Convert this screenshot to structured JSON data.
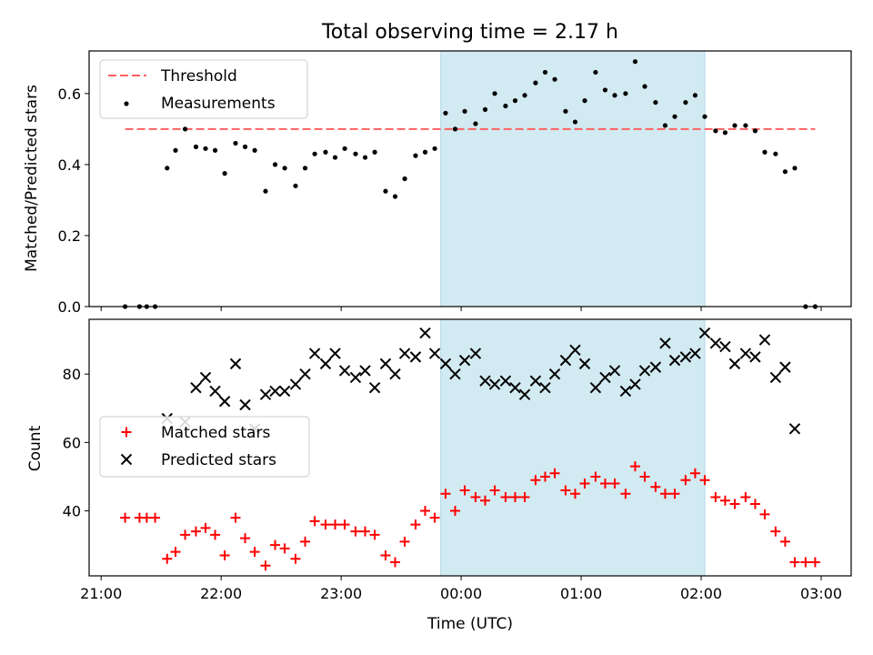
{
  "chart_data": [
    {
      "type": "scatter",
      "title": "Total observing time = 2.17 h",
      "xlabel": "",
      "ylabel": "Matched/Predicted stars",
      "ylim": [
        0,
        0.72
      ],
      "yticks": [
        "0.0",
        "0.2",
        "0.4",
        "0.6"
      ],
      "x_unit": "time UTC (hours from 21:00)",
      "highlight_span": {
        "x0": 2.83,
        "x1": 5.03,
        "color": "#add8e6"
      },
      "threshold": {
        "name": "Threshold",
        "value": 0.5,
        "x0": 0.2,
        "x1": 5.95,
        "color": "#ff6060"
      },
      "legend": {
        "position": "upper left",
        "entries": [
          "Threshold",
          "Measurements"
        ]
      },
      "series": [
        {
          "name": "Measurements",
          "color": "#000000",
          "x": [
            0.2,
            0.32,
            0.38,
            0.45,
            0.55,
            0.62,
            0.7,
            0.79,
            0.87,
            0.95,
            1.03,
            1.12,
            1.2,
            1.28,
            1.37,
            1.45,
            1.53,
            1.62,
            1.7,
            1.78,
            1.87,
            1.95,
            2.03,
            2.12,
            2.2,
            2.28,
            2.37,
            2.45,
            2.53,
            2.62,
            2.7,
            2.78,
            2.87,
            2.95,
            3.03,
            3.12,
            3.2,
            3.28,
            3.37,
            3.45,
            3.53,
            3.62,
            3.7,
            3.78,
            3.87,
            3.95,
            4.03,
            4.12,
            4.2,
            4.28,
            4.37,
            4.45,
            4.53,
            4.62,
            4.7,
            4.78,
            4.87,
            4.95,
            5.03,
            5.12,
            5.2,
            5.28,
            5.37,
            5.45,
            5.53,
            5.62,
            5.7,
            5.78,
            5.87,
            5.95
          ],
          "y": [
            0,
            0,
            0,
            0,
            0.39,
            0.44,
            0.5,
            0.45,
            0.445,
            0.44,
            0.375,
            0.46,
            0.45,
            0.44,
            0.325,
            0.4,
            0.39,
            0.34,
            0.39,
            0.43,
            0.435,
            0.42,
            0.445,
            0.43,
            0.42,
            0.435,
            0.325,
            0.31,
            0.36,
            0.425,
            0.435,
            0.445,
            0.545,
            0.5,
            0.55,
            0.515,
            0.555,
            0.6,
            0.565,
            0.58,
            0.595,
            0.63,
            0.66,
            0.64,
            0.55,
            0.52,
            0.58,
            0.66,
            0.61,
            0.595,
            0.6,
            0.69,
            0.62,
            0.575,
            0.51,
            0.535,
            0.575,
            0.595,
            0.535,
            0.495,
            0.49,
            0.51,
            0.51,
            0.495,
            0.435,
            0.43,
            0.38,
            0.39,
            0,
            0
          ]
        }
      ]
    },
    {
      "type": "scatter",
      "title": "",
      "xlabel": "Time (UTC)",
      "ylabel": "Count",
      "ylim": [
        21,
        96
      ],
      "yticks": [
        "40",
        "60",
        "80"
      ],
      "xlim": [
        -0.1,
        6.25
      ],
      "xticks": [
        "21:00",
        "22:00",
        "23:00",
        "00:00",
        "01:00",
        "02:00",
        "03:00"
      ],
      "highlight_span": {
        "x0": 2.83,
        "x1": 5.03,
        "color": "#add8e6"
      },
      "legend": {
        "position": "center left",
        "entries": [
          "Matched stars",
          "Predicted stars"
        ]
      },
      "series": [
        {
          "name": "Matched stars",
          "marker": "+",
          "color": "#ff0000",
          "x": [
            0.2,
            0.32,
            0.38,
            0.45,
            0.55,
            0.62,
            0.7,
            0.79,
            0.87,
            0.95,
            1.03,
            1.12,
            1.2,
            1.28,
            1.37,
            1.45,
            1.53,
            1.62,
            1.7,
            1.78,
            1.87,
            1.95,
            2.03,
            2.12,
            2.2,
            2.28,
            2.37,
            2.45,
            2.53,
            2.62,
            2.7,
            2.78,
            2.87,
            2.95,
            3.03,
            3.12,
            3.2,
            3.28,
            3.37,
            3.45,
            3.53,
            3.62,
            3.7,
            3.78,
            3.87,
            3.95,
            4.03,
            4.12,
            4.2,
            4.28,
            4.37,
            4.45,
            4.53,
            4.62,
            4.7,
            4.78,
            4.87,
            4.95,
            5.03,
            5.12,
            5.2,
            5.28,
            5.37,
            5.45,
            5.53,
            5.62,
            5.7,
            5.78,
            5.87,
            5.95
          ],
          "y": [
            38,
            38,
            38,
            38,
            26,
            28,
            33,
            34,
            35,
            33,
            27,
            38,
            32,
            28,
            24,
            30,
            29,
            26,
            31,
            37,
            36,
            36,
            36,
            34,
            34,
            33,
            27,
            25,
            31,
            36,
            40,
            38,
            45,
            40,
            46,
            44,
            43,
            46,
            44,
            44,
            44,
            49,
            50,
            51,
            46,
            45,
            48,
            50,
            48,
            48,
            45,
            53,
            50,
            47,
            45,
            45,
            49,
            51,
            49,
            44,
            43,
            42,
            44,
            42,
            39,
            34,
            31,
            25,
            25,
            25
          ]
        },
        {
          "name": "Predicted stars",
          "marker": "x",
          "color": "#000000",
          "x": [
            0.55,
            0.7,
            0.79,
            0.87,
            0.95,
            1.03,
            1.12,
            1.2,
            1.28,
            1.37,
            1.45,
            1.53,
            1.62,
            1.7,
            1.78,
            1.87,
            1.95,
            2.03,
            2.12,
            2.2,
            2.28,
            2.37,
            2.45,
            2.53,
            2.62,
            2.7,
            2.78,
            2.87,
            2.95,
            3.03,
            3.12,
            3.2,
            3.28,
            3.37,
            3.45,
            3.53,
            3.62,
            3.7,
            3.78,
            3.87,
            3.95,
            4.03,
            4.12,
            4.2,
            4.28,
            4.37,
            4.45,
            4.53,
            4.62,
            4.7,
            4.78,
            4.87,
            4.95,
            5.03,
            5.12,
            5.2,
            5.28,
            5.37,
            5.45,
            5.53,
            5.62,
            5.7,
            5.78
          ],
          "y": [
            67,
            66,
            76,
            79,
            75,
            72,
            83,
            71,
            64,
            74,
            75,
            75,
            77,
            80,
            86,
            83,
            86,
            81,
            79,
            81,
            76,
            83,
            80,
            86,
            85,
            92,
            86,
            83,
            80,
            84,
            86,
            78,
            77,
            78,
            76,
            74,
            78,
            76,
            80,
            84,
            87,
            83,
            76,
            79,
            81,
            75,
            77,
            81,
            82,
            89,
            84,
            85,
            86,
            92,
            89,
            88,
            83,
            86,
            85,
            90,
            79,
            82,
            64
          ]
        }
      ]
    }
  ]
}
